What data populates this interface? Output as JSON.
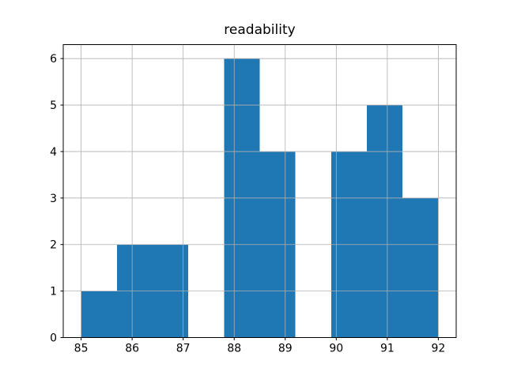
{
  "figure": {
    "background": "#ffffff"
  },
  "chart_data": {
    "type": "bar",
    "subtype": "histogram",
    "title": "readability",
    "xlabel": "",
    "ylabel": "",
    "bin_edges": [
      85.0,
      85.7,
      86.4,
      87.1,
      87.8,
      88.5,
      89.2,
      89.9,
      90.6,
      91.3,
      92.0
    ],
    "counts": [
      1,
      2,
      2,
      0,
      6,
      4,
      0,
      4,
      5,
      3
    ],
    "xticks": [
      85,
      86,
      87,
      88,
      89,
      90,
      91,
      92
    ],
    "yticks": [
      0,
      1,
      2,
      3,
      4,
      5,
      6
    ],
    "xlim": [
      84.65,
      92.35
    ],
    "ylim": [
      0,
      6.3
    ],
    "grid": true,
    "grid_above_bars": true,
    "legend": null,
    "bar_color": "#1f77b4",
    "grid_color": "#b0b0b0",
    "spine_color": "#000000",
    "tick_color": "#000000",
    "text_color": "#000000"
  }
}
